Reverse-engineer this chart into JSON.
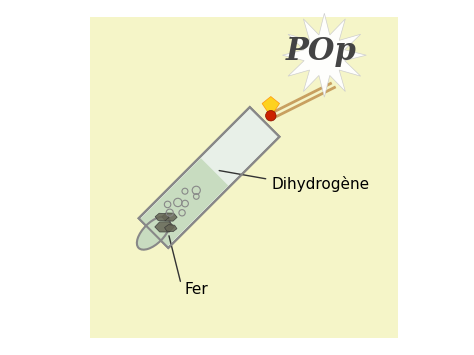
{
  "background_color": "#f5f5c8",
  "outer_background": "#ffffff",
  "label_dihydrogene": "Dihydrogène",
  "label_fer": "Fer",
  "label_pop": "POp",
  "tube_body_color": "#e8f0e8",
  "tube_liquid_color": "#c8dcc0",
  "tube_outline_color": "#888888",
  "iron_color": "#666655",
  "bubble_color": "#aaaaaa",
  "match_stick_color": "#c8a060",
  "match_head_color": "#cc2200",
  "flame_color": "#ffaa00",
  "pop_text_color": "#444444",
  "label_font_size": 11,
  "pop_font_size": 22,
  "line_color": "#333333"
}
